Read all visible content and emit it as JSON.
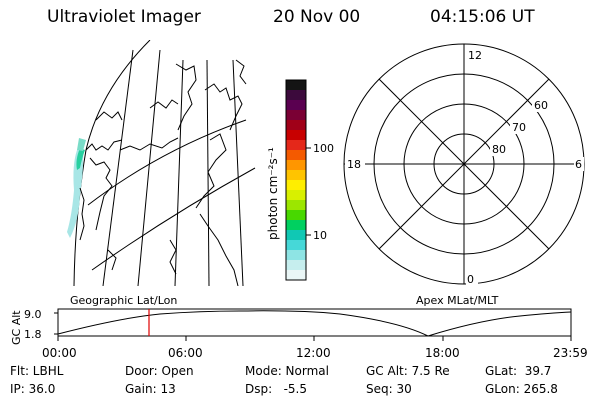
{
  "header": {
    "instrument": "Ultraviolet Imager",
    "date": "20 Nov 00",
    "time": "04:15:06 UT"
  },
  "map": {
    "caption": "Geographic Lat/Lon"
  },
  "colorbar": {
    "label": "photon cm⁻²s⁻¹",
    "ticks": [
      "100",
      "10"
    ],
    "colors": [
      "#141414",
      "#3c0a3c",
      "#5a0050",
      "#7a0034",
      "#a00018",
      "#c80000",
      "#e4281a",
      "#f45a00",
      "#ff9600",
      "#ffc400",
      "#ffee00",
      "#d8f000",
      "#9ce600",
      "#48d800",
      "#00d060",
      "#10c8b4",
      "#46d8d8",
      "#8ee4e4",
      "#c6eeee",
      "#eaf6f6"
    ]
  },
  "polar": {
    "caption": "Apex MLat/MLT",
    "mlt_labels": {
      "top": "12",
      "left": "18",
      "right": "6",
      "bottom": "0"
    },
    "lat_labels": [
      "60",
      "70",
      "80"
    ]
  },
  "timeline": {
    "ylabel": "GC Alt",
    "ytick_top": "9.0",
    "ytick_bottom": "1.8",
    "xticks": [
      "00:00",
      "06:00",
      "12:00",
      "18:00",
      "23:59"
    ],
    "marker_time": "04:15"
  },
  "status": {
    "flt": "Flt: LBHL",
    "ip": "IP: 36.0",
    "door": "Door: Open",
    "gain": "Gain: 13",
    "mode": "Mode: Normal",
    "dsp": "Dsp:   -5.5",
    "gcalt": "GC Alt: 7.5 Re",
    "seq": "Seq: 30",
    "glat": "GLat:  39.7",
    "glon": "GLon: 265.8"
  }
}
